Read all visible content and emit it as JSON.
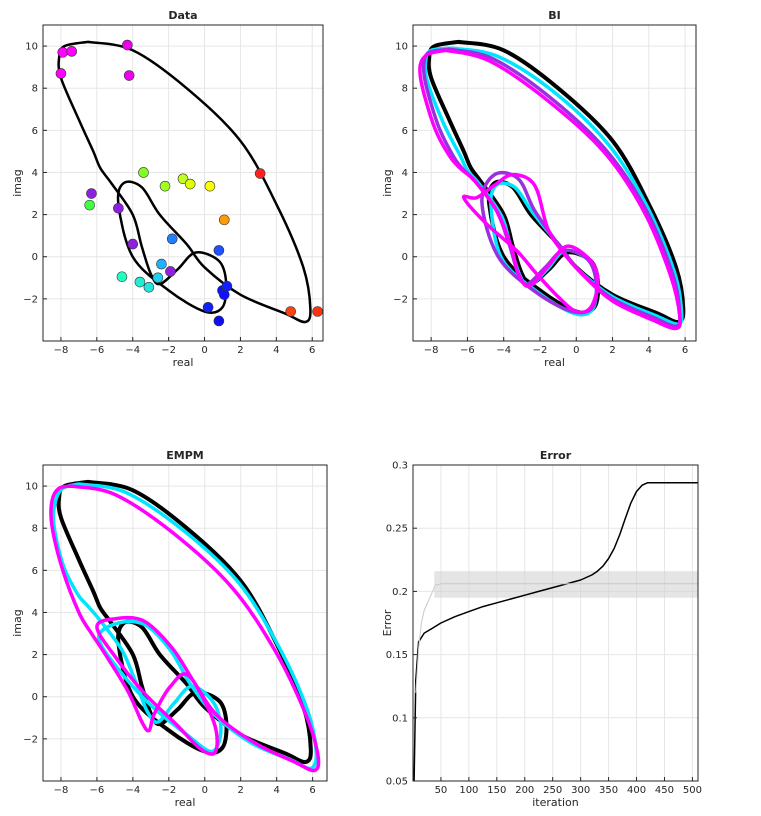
{
  "figure_title": "",
  "chart_data": [
    {
      "id": "data",
      "type": "scatter",
      "title": "Data",
      "xlabel": "real",
      "ylabel": "imag",
      "xlim": [
        -9,
        6.6
      ],
      "ylim": [
        -4,
        11
      ],
      "xticks": [
        -8,
        -6,
        -4,
        -2,
        0,
        2,
        4,
        6
      ],
      "yticks": [
        -2,
        0,
        2,
        4,
        6,
        8,
        10
      ],
      "grid": true,
      "points": [
        {
          "x": -8.0,
          "y": 8.7,
          "color": "#ff00ff"
        },
        {
          "x": -7.9,
          "y": 9.7,
          "color": "#ff00ff"
        },
        {
          "x": -7.4,
          "y": 9.75,
          "color": "#ff00ff"
        },
        {
          "x": -4.3,
          "y": 10.05,
          "color": "#ee00ee"
        },
        {
          "x": -4.2,
          "y": 8.6,
          "color": "#ee00ee"
        },
        {
          "x": -6.3,
          "y": 3.0,
          "color": "#9020e0"
        },
        {
          "x": -4.8,
          "y": 2.3,
          "color": "#9020e0"
        },
        {
          "x": -4.0,
          "y": 0.6,
          "color": "#9020e0"
        },
        {
          "x": -1.9,
          "y": -0.7,
          "color": "#9020e0"
        },
        {
          "x": -6.4,
          "y": 2.45,
          "color": "#40ff40"
        },
        {
          "x": -3.4,
          "y": 4.0,
          "color": "#80ff20"
        },
        {
          "x": -2.2,
          "y": 3.35,
          "color": "#a0ff20"
        },
        {
          "x": -1.2,
          "y": 3.7,
          "color": "#c0ff20"
        },
        {
          "x": -0.8,
          "y": 3.45,
          "color": "#e0ff00"
        },
        {
          "x": 0.3,
          "y": 3.35,
          "color": "#ffff00"
        },
        {
          "x": 1.1,
          "y": 1.75,
          "color": "#ff9a00"
        },
        {
          "x": 3.1,
          "y": 3.95,
          "color": "#ff2020"
        },
        {
          "x": 4.8,
          "y": -2.6,
          "color": "#ff4010"
        },
        {
          "x": 6.3,
          "y": -2.6,
          "color": "#ff3010"
        },
        {
          "x": -4.6,
          "y": -0.95,
          "color": "#20ffc0"
        },
        {
          "x": -3.6,
          "y": -1.2,
          "color": "#20f0d0"
        },
        {
          "x": -3.1,
          "y": -1.45,
          "color": "#20e8e0"
        },
        {
          "x": -2.6,
          "y": -1.0,
          "color": "#20d0f0"
        },
        {
          "x": -2.4,
          "y": -0.35,
          "color": "#20b0ff"
        },
        {
          "x": -1.8,
          "y": 0.85,
          "color": "#2080ff"
        },
        {
          "x": 0.8,
          "y": 0.3,
          "color": "#2050ff"
        },
        {
          "x": 0.2,
          "y": -2.4,
          "color": "#1020ff"
        },
        {
          "x": 0.8,
          "y": -3.05,
          "color": "#1010ee"
        },
        {
          "x": 1.0,
          "y": -1.6,
          "color": "#1010ff"
        },
        {
          "x": 1.1,
          "y": -1.8,
          "color": "#1010ff"
        },
        {
          "x": 1.25,
          "y": -1.4,
          "color": "#1020ff"
        }
      ],
      "curves": [
        {
          "name": "",
          "color": "#000000",
          "width": 2.5,
          "x": [
            -6.5,
            -4,
            -1,
            2,
            4,
            5.5,
            5.9,
            5.6,
            4.5,
            2,
            0,
            -1,
            -2.5,
            -3.5,
            -4.5,
            -4.8,
            -4,
            -2,
            0,
            1,
            1.2,
            0.8,
            -0.5,
            -1.5,
            -2.5,
            -3,
            -3.5,
            -4,
            -5.2,
            -5.8,
            -6.2,
            -7,
            -8,
            -8.1,
            -7.8,
            -6.5
          ],
          "y": [
            10.2,
            9.8,
            8,
            5.5,
            2.5,
            -0.5,
            -2.5,
            -3.1,
            -2.7,
            -1.8,
            -0.5,
            0.6,
            2,
            3.3,
            3.5,
            2.5,
            0,
            -1.6,
            -2.6,
            -2.4,
            -1.2,
            -0.2,
            0.2,
            -0.6,
            -1.3,
            -0.8,
            0.5,
            2,
            3.5,
            4.2,
            5,
            6.5,
            8.5,
            9.5,
            10,
            10.2
          ]
        }
      ]
    },
    {
      "id": "bi",
      "type": "line",
      "title": "BI",
      "xlabel": "real",
      "ylabel": "imag",
      "xlim": [
        -9,
        6.6
      ],
      "ylim": [
        -4,
        11
      ],
      "xticks": [
        -8,
        -6,
        -4,
        -2,
        0,
        2,
        4,
        6
      ],
      "yticks": [
        -2,
        0,
        2,
        4,
        6,
        8,
        10
      ],
      "grid": true,
      "series": [
        {
          "name": "",
          "color": "#000000",
          "width": 4,
          "x": [
            -6.5,
            -4,
            -1,
            2,
            4,
            5.5,
            5.9,
            5.6,
            4.5,
            2,
            0,
            -1,
            -2.5,
            -3.5,
            -4.5,
            -4.8,
            -4,
            -2,
            0,
            1,
            1.2,
            0.8,
            -0.5,
            -1.5,
            -2.5,
            -3,
            -3.5,
            -4,
            -5.2,
            -5.8,
            -6.2,
            -7,
            -8,
            -8.1,
            -7.8,
            -6.5
          ],
          "y": [
            10.2,
            9.8,
            8,
            5.5,
            2.5,
            -0.5,
            -2.5,
            -3.1,
            -2.7,
            -1.8,
            -0.5,
            0.6,
            2,
            3.3,
            3.5,
            2.5,
            0,
            -1.6,
            -2.6,
            -2.4,
            -1.2,
            -0.2,
            0.2,
            -0.6,
            -1.3,
            -0.8,
            0.5,
            2,
            3.5,
            4.2,
            5,
            6.5,
            8.5,
            9.5,
            10,
            10.2
          ]
        },
        {
          "name": "",
          "color": "#00e5ff",
          "width": 3.5,
          "x": [
            -6.8,
            -4.3,
            -1.2,
            1.8,
            3.9,
            5.4,
            5.8,
            5.6,
            4.4,
            2,
            0.1,
            -1,
            -2.4,
            -3.4,
            -4.4,
            -4.7,
            -4.1,
            -2.1,
            -0.1,
            0.9,
            1.1,
            0.7,
            -0.6,
            -1.6,
            -2.6,
            -3.1,
            -3.6,
            -4.1,
            -5.3,
            -6,
            -6.4,
            -7.3,
            -8.2,
            -8.3,
            -8,
            -6.8
          ],
          "y": [
            9.9,
            9.5,
            7.8,
            5.3,
            2.4,
            -0.7,
            -2.6,
            -3.2,
            -2.8,
            -1.9,
            -0.6,
            0.6,
            2.1,
            3.3,
            3.4,
            2.4,
            -0.1,
            -1.7,
            -2.7,
            -2.5,
            -1.3,
            -0.2,
            0.3,
            -0.6,
            -1.4,
            -0.9,
            0.4,
            1.9,
            3.4,
            4.1,
            4.8,
            6.3,
            8.3,
            9.3,
            9.8,
            9.9
          ]
        },
        {
          "name": "",
          "color": "#9a30e0",
          "width": 3.5,
          "x": [
            -7,
            -4.6,
            -1.5,
            1.6,
            3.8,
            5.3,
            5.7,
            5.5,
            4.3,
            2,
            0.2,
            -1,
            -2.3,
            -3.2,
            -4.5,
            -5.2,
            -4.3,
            -2.2,
            -0.2,
            0.9,
            1.1,
            0.6,
            -0.7,
            -1.7,
            -2.7,
            -3.2,
            -3.7,
            -4.4,
            -5.6,
            -6.3,
            -6.8,
            -7.6,
            -8.3,
            -8.4,
            -8.1,
            -7
          ],
          "y": [
            9.85,
            9.4,
            7.6,
            5.1,
            2.3,
            -0.8,
            -2.7,
            -3.3,
            -2.9,
            -2,
            -0.7,
            0.6,
            2.2,
            3.7,
            3.9,
            2.6,
            0,
            -1.7,
            -2.6,
            -2.4,
            -1.2,
            -0.1,
            0.3,
            -0.5,
            -1.3,
            -0.8,
            0.6,
            2.2,
            3.6,
            4.2,
            4.8,
            6.2,
            8.2,
            9.2,
            9.7,
            9.85
          ]
        },
        {
          "name": "",
          "color": "#ff00ff",
          "width": 3.5,
          "x": [
            -7.2,
            -4.8,
            -1.7,
            1.5,
            3.7,
            5.2,
            5.7,
            5.5,
            4.2,
            2,
            0.3,
            -0.9,
            -1.6,
            -2.3,
            -3.5,
            -4.5,
            -5.5,
            -6.2,
            -5,
            -3.3,
            -2.2,
            -1,
            0,
            0.8,
            1.2,
            0.8,
            -0.5,
            -1.6,
            -2.6,
            -3.2,
            -3.6,
            -4.4,
            -5.6,
            -6.4,
            -7,
            -7.8,
            -8.5,
            -8.6,
            -8.2,
            -7.2
          ],
          "y": [
            9.8,
            9.3,
            7.5,
            5,
            2.2,
            -0.9,
            -2.8,
            -3.4,
            -3,
            -2.1,
            -0.8,
            0.4,
            1.4,
            3.4,
            3.9,
            3.4,
            2.8,
            2.8,
            1.6,
            0.3,
            -0.8,
            -1.9,
            -2.6,
            -2.4,
            -1.2,
            -0.2,
            0.5,
            -0.5,
            -1.4,
            -0.8,
            0.5,
            2.2,
            3.6,
            4.2,
            4.8,
            6.1,
            8.1,
            9.1,
            9.6,
            9.8
          ]
        }
      ]
    },
    {
      "id": "empm",
      "type": "line",
      "title": "EMPM",
      "xlabel": "real",
      "ylabel": "imag",
      "xlim": [
        -9,
        6.8
      ],
      "ylim": [
        -4,
        11
      ],
      "xticks": [
        -8,
        -6,
        -4,
        -2,
        0,
        2,
        4,
        6
      ],
      "yticks": [
        -2,
        0,
        2,
        4,
        6,
        8,
        10
      ],
      "grid": true,
      "series": [
        {
          "name": "",
          "color": "#000000",
          "width": 4,
          "x": [
            -6.5,
            -4,
            -1,
            2,
            4,
            5.5,
            5.9,
            5.6,
            4.5,
            2,
            0,
            -1,
            -2.5,
            -3.5,
            -4.5,
            -4.8,
            -4,
            -2,
            0,
            1,
            1.2,
            0.8,
            -0.5,
            -1.5,
            -2.5,
            -3,
            -3.5,
            -4,
            -5.2,
            -5.8,
            -6.2,
            -7,
            -8,
            -8.1,
            -7.8,
            -6.5
          ],
          "y": [
            10.2,
            9.8,
            8,
            5.5,
            2.5,
            -0.5,
            -2.5,
            -3.1,
            -2.7,
            -1.8,
            -0.5,
            0.6,
            2,
            3.3,
            3.5,
            2.5,
            0,
            -1.6,
            -2.6,
            -2.4,
            -1.2,
            -0.2,
            0.2,
            -0.6,
            -1.3,
            -0.8,
            0.5,
            2,
            3.5,
            4.2,
            5,
            6.5,
            8.5,
            9.5,
            10,
            10.2
          ]
        },
        {
          "name": "",
          "color": "#00e5ff",
          "width": 3.5,
          "x": [
            -7,
            -4.4,
            -1.2,
            1.9,
            4.1,
            5.7,
            6.2,
            5.9,
            4.8,
            2.6,
            0.6,
            -0.8,
            -1.9,
            -3.3,
            -4.8,
            -5.9,
            -4.7,
            -3,
            -1,
            0.4,
            0.9,
            0.5,
            -0.7,
            -1.7,
            -2.6,
            -3.2,
            -3.8,
            -4.6,
            -5.8,
            -6.5,
            -7.1,
            -7.9,
            -8.4,
            -8.3,
            -7.9,
            -7
          ],
          "y": [
            10.1,
            9.7,
            7.9,
            5.4,
            2.4,
            -0.6,
            -2.6,
            -3.4,
            -3,
            -2.2,
            -0.9,
            0.6,
            2.2,
            3.4,
            3.5,
            2.8,
            1.2,
            -0.4,
            -1.8,
            -2.6,
            -1.6,
            -0.3,
            0.5,
            -0.3,
            -1.2,
            -0.7,
            0.6,
            2.2,
            3.6,
            4.3,
            4.9,
            6.3,
            8.2,
            9.3,
            9.9,
            10.1
          ]
        },
        {
          "name": "",
          "color": "#ff00ff",
          "width": 3.5,
          "x": [
            -7.4,
            -5,
            -1.8,
            1.5,
            3.9,
            5.6,
            6.3,
            6.1,
            5,
            2.8,
            0.7,
            -0.6,
            -1.8,
            -3.4,
            -5,
            -6,
            -4.9,
            -3.4,
            -1.6,
            -0.2,
            0.6,
            0.5,
            -0.9,
            -1.9,
            -2.8,
            -3.1,
            -3.5,
            -4.3,
            -5.6,
            -6.3,
            -7,
            -7.9,
            -8.5,
            -8.5,
            -8.1,
            -7.4
          ],
          "y": [
            10,
            9.6,
            7.8,
            5.2,
            2.2,
            -0.8,
            -2.8,
            -3.5,
            -3.1,
            -2.2,
            -0.9,
            0.7,
            2.3,
            3.6,
            3.7,
            3.3,
            1.8,
            0.2,
            -1.3,
            -2.5,
            -2.6,
            -1.2,
            1.0,
            0.5,
            -0.8,
            -1.6,
            -1.2,
            0.3,
            2.1,
            3.0,
            4.0,
            6.0,
            8.1,
            9.3,
            9.9,
            10
          ]
        }
      ]
    },
    {
      "id": "error",
      "type": "line",
      "title": "Error",
      "xlabel": "iteration",
      "ylabel": "Error",
      "xlim": [
        0,
        510
      ],
      "ylim": [
        0.05,
        0.3
      ],
      "xticks": [
        50,
        100,
        150,
        200,
        250,
        300,
        350,
        400,
        450,
        500
      ],
      "yticks": [
        0.05,
        0.1,
        0.15,
        0.2,
        0.25,
        0.3
      ],
      "grid": true,
      "series": [
        {
          "name": "",
          "color": "#000000",
          "width": 1.5,
          "x": [
            2,
            5,
            10,
            20,
            35,
            50,
            75,
            100,
            125,
            150,
            175,
            200,
            225,
            250,
            275,
            300,
            310,
            320,
            330,
            340,
            350,
            360,
            370,
            380,
            390,
            400,
            410,
            420,
            440,
            460,
            480,
            510
          ],
          "y": [
            0.05,
            0.13,
            0.16,
            0.167,
            0.171,
            0.175,
            0.18,
            0.184,
            0.188,
            0.191,
            0.194,
            0.197,
            0.2,
            0.203,
            0.206,
            0.209,
            0.211,
            0.213,
            0.216,
            0.22,
            0.226,
            0.234,
            0.245,
            0.258,
            0.27,
            0.279,
            0.284,
            0.286,
            0.286,
            0.286,
            0.286,
            0.286
          ]
        },
        {
          "name": "",
          "color": "#c8c8c8",
          "width": 1,
          "x": [
            5,
            10,
            15,
            20,
            25,
            30,
            35,
            40,
            50,
            510
          ],
          "y": [
            0.12,
            0.155,
            0.175,
            0.185,
            0.19,
            0.195,
            0.2,
            0.205,
            0.206,
            0.206
          ]
        }
      ],
      "band": {
        "color": "#d0d0d0",
        "x_start": 38,
        "x_end": 510,
        "y_low": 0.195,
        "y_high": 0.216
      }
    }
  ]
}
